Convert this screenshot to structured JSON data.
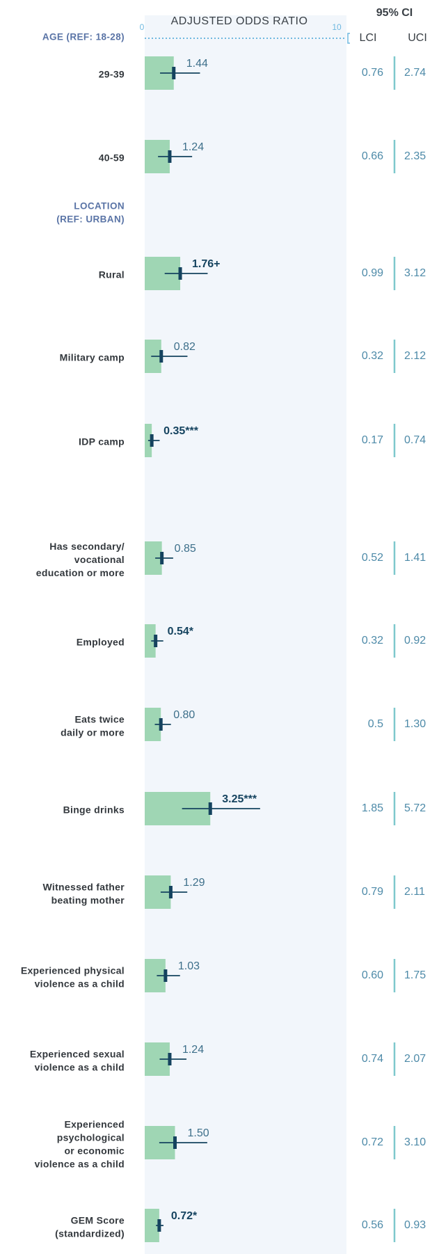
{
  "chart_data": {
    "type": "forest",
    "title": "ADJUSTED ODDS RATIO",
    "ci_title": "95% CI",
    "lci_header": "LCI",
    "uci_header": "UCI",
    "xlim": [
      0,
      10
    ],
    "xticks": [
      0,
      10
    ],
    "groups": [
      {
        "label": "AGE (REF: 18-28)",
        "before": 0
      },
      {
        "label": "LOCATION\n(REF: URBAN)",
        "before": 2
      }
    ],
    "categories": [
      "29-39",
      "40-59",
      "Rural",
      "Military camp",
      "IDP camp",
      "Has secondary/\nvocational\neducation or more",
      "Employed",
      "Eats twice\ndaily or more",
      "Binge drinks",
      "Witnessed father\nbeating mother",
      "Experienced physical\nviolence as a child",
      "Experienced sexual\nviolence as a child",
      "Experienced\npsychological\nor economic\nviolence as a child",
      "GEM Score\n(standardized)"
    ],
    "values": [
      1.44,
      1.24,
      1.76,
      0.82,
      0.35,
      0.85,
      0.54,
      0.8,
      3.25,
      1.29,
      1.03,
      1.24,
      1.5,
      0.72
    ],
    "value_labels": [
      "1.44",
      "1.24",
      "1.76+",
      "0.82",
      "0.35***",
      "0.85",
      "0.54*",
      "0.80",
      "3.25***",
      "1.29",
      "1.03",
      "1.24",
      "1.50",
      "0.72*"
    ],
    "lci": [
      0.76,
      0.66,
      0.99,
      0.32,
      0.17,
      0.52,
      0.32,
      0.5,
      1.85,
      0.79,
      0.6,
      0.74,
      0.72,
      0.56
    ],
    "lci_labels": [
      "0.76",
      "0.66",
      "0.99",
      "0.32",
      "0.17",
      "0.52",
      "0.32",
      "0.5",
      "1.85",
      "0.79",
      "0.60",
      "0.74",
      "0.72",
      "0.56"
    ],
    "uci": [
      2.74,
      2.35,
      3.12,
      2.12,
      0.74,
      1.41,
      0.92,
      1.3,
      5.72,
      2.11,
      1.75,
      2.07,
      3.1,
      0.93
    ],
    "uci_labels": [
      "2.74",
      "2.35",
      "3.12",
      "2.12",
      "0.74",
      "1.41",
      "0.92",
      "1.30",
      "5.72",
      "2.11",
      "1.75",
      "2.07",
      "3.10",
      "0.93"
    ],
    "color": "#9fd6b4",
    "whisker_color": "#15435f"
  }
}
